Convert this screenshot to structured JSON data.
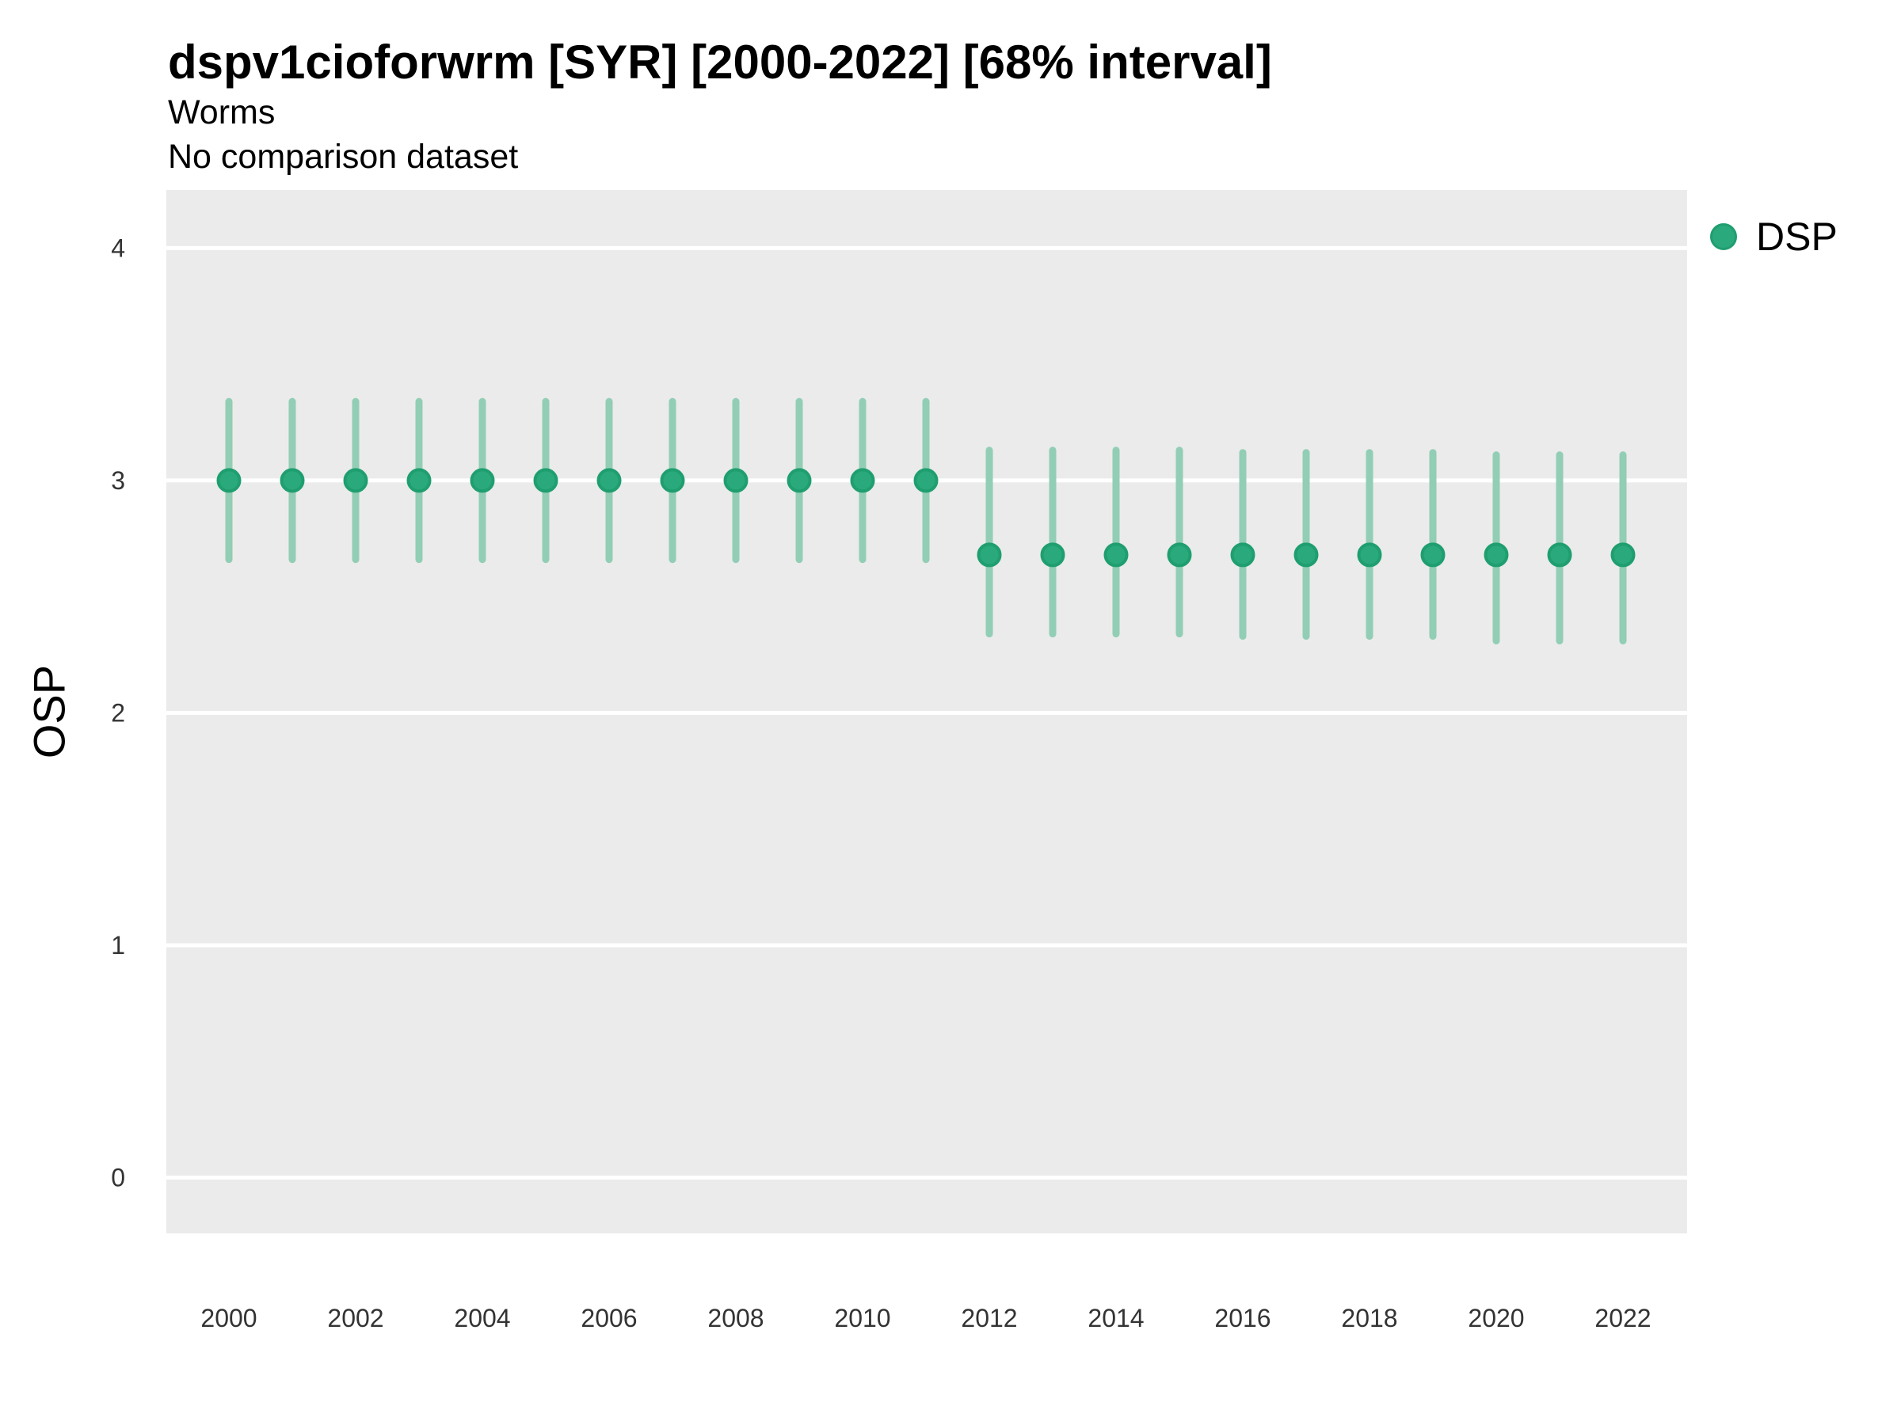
{
  "header": {
    "title": "dspv1cioforwrm [SYR] [2000-2022] [68% interval]",
    "subtitle": "Worms",
    "note": "No comparison dataset"
  },
  "colors": {
    "point_fill": "#2aa97c",
    "point_ring": "#1f9e70",
    "interval_bar": "#92ceb5",
    "panel_bg": "#ebebeb",
    "gridline": "#ffffff",
    "tick_text": "#333333",
    "text": "#000000"
  },
  "legend": {
    "items": [
      {
        "label": "DSP",
        "color": "#2aa97c"
      }
    ]
  },
  "y_axis": {
    "label": "OSP",
    "ticks": [
      0,
      1,
      2,
      3,
      4
    ]
  },
  "x_axis": {
    "ticks": [
      2000,
      2002,
      2004,
      2006,
      2008,
      2010,
      2012,
      2014,
      2016,
      2018,
      2020,
      2022
    ]
  },
  "chart_data": {
    "type": "scatter",
    "title": "dspv1cioforwrm [SYR] [2000-2022] [68% interval]",
    "subtitle": "Worms",
    "note": "No comparison dataset",
    "xlabel": "",
    "ylabel": "OSP",
    "interval": "68%",
    "ylim": [
      -0.24,
      4.25
    ],
    "xlim": [
      1999,
      2023
    ],
    "yticks": [
      0,
      1,
      2,
      3,
      4
    ],
    "xticks": [
      2000,
      2002,
      2004,
      2006,
      2008,
      2010,
      2012,
      2014,
      2016,
      2018,
      2020,
      2022
    ],
    "grid": "horizontal-major-only",
    "legend_position": "right-top",
    "series": [
      {
        "name": "DSP",
        "color": "#2aa97c",
        "points": [
          {
            "x": 2000,
            "y": 3.0,
            "lo": 2.66,
            "hi": 3.34
          },
          {
            "x": 2001,
            "y": 3.0,
            "lo": 2.66,
            "hi": 3.34
          },
          {
            "x": 2002,
            "y": 3.0,
            "lo": 2.66,
            "hi": 3.34
          },
          {
            "x": 2003,
            "y": 3.0,
            "lo": 2.66,
            "hi": 3.34
          },
          {
            "x": 2004,
            "y": 3.0,
            "lo": 2.66,
            "hi": 3.34
          },
          {
            "x": 2005,
            "y": 3.0,
            "lo": 2.66,
            "hi": 3.34
          },
          {
            "x": 2006,
            "y": 3.0,
            "lo": 2.66,
            "hi": 3.34
          },
          {
            "x": 2007,
            "y": 3.0,
            "lo": 2.66,
            "hi": 3.34
          },
          {
            "x": 2008,
            "y": 3.0,
            "lo": 2.66,
            "hi": 3.34
          },
          {
            "x": 2009,
            "y": 3.0,
            "lo": 2.66,
            "hi": 3.34
          },
          {
            "x": 2010,
            "y": 3.0,
            "lo": 2.66,
            "hi": 3.34
          },
          {
            "x": 2011,
            "y": 3.0,
            "lo": 2.66,
            "hi": 3.34
          },
          {
            "x": 2012,
            "y": 2.68,
            "lo": 2.34,
            "hi": 3.13
          },
          {
            "x": 2013,
            "y": 2.68,
            "lo": 2.34,
            "hi": 3.13
          },
          {
            "x": 2014,
            "y": 2.68,
            "lo": 2.34,
            "hi": 3.13
          },
          {
            "x": 2015,
            "y": 2.68,
            "lo": 2.34,
            "hi": 3.13
          },
          {
            "x": 2016,
            "y": 2.68,
            "lo": 2.33,
            "hi": 3.12
          },
          {
            "x": 2017,
            "y": 2.68,
            "lo": 2.33,
            "hi": 3.12
          },
          {
            "x": 2018,
            "y": 2.68,
            "lo": 2.33,
            "hi": 3.12
          },
          {
            "x": 2019,
            "y": 2.68,
            "lo": 2.33,
            "hi": 3.12
          },
          {
            "x": 2020,
            "y": 2.68,
            "lo": 2.31,
            "hi": 3.11
          },
          {
            "x": 2021,
            "y": 2.68,
            "lo": 2.31,
            "hi": 3.11
          },
          {
            "x": 2022,
            "y": 2.68,
            "lo": 2.31,
            "hi": 3.11
          }
        ]
      }
    ]
  }
}
